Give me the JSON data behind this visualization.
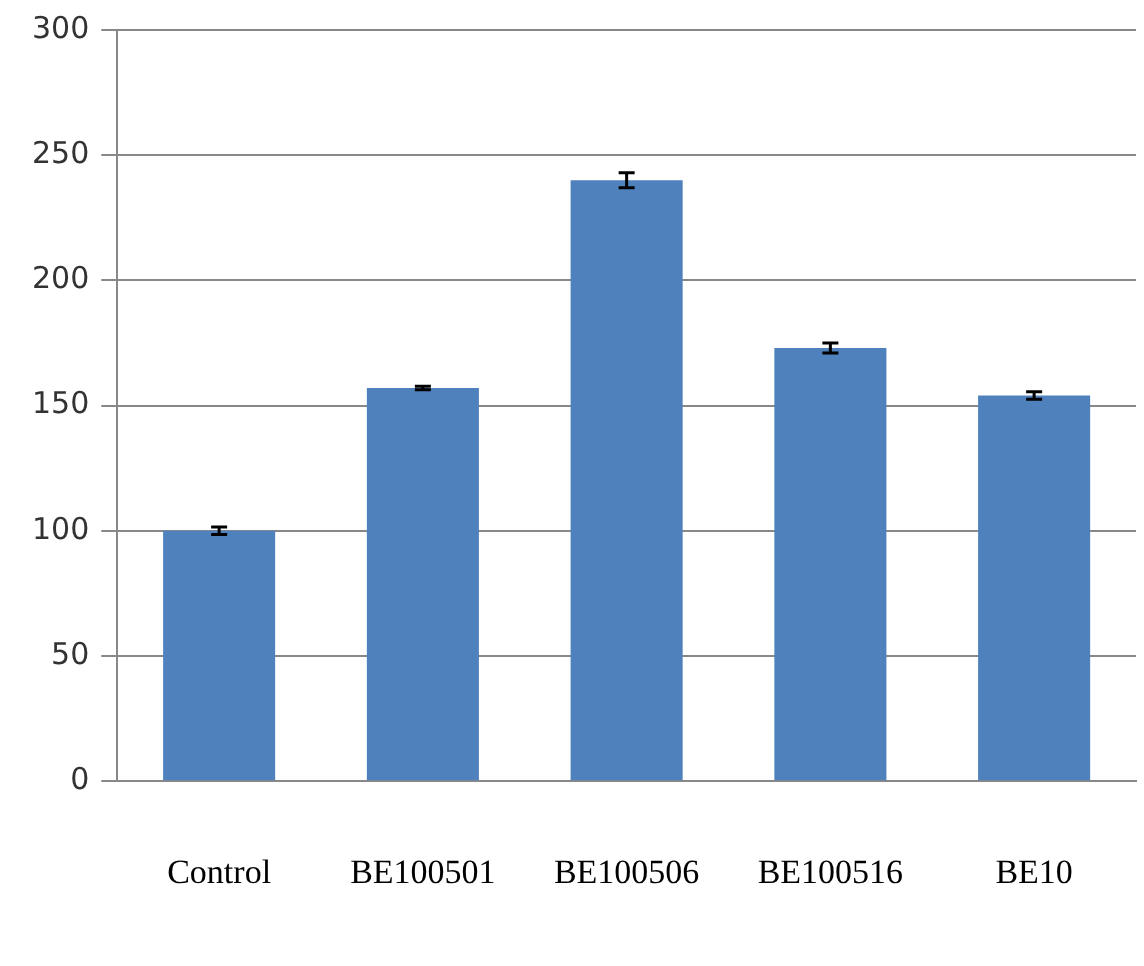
{
  "chart_data": {
    "type": "bar",
    "categories": [
      "Control",
      "BE100501",
      "BE100506",
      "BE100516",
      "BE10"
    ],
    "values": [
      100,
      157,
      240,
      173,
      154
    ],
    "errors": [
      1.5,
      0.7,
      3,
      2,
      1.5
    ],
    "color": "#4f81bd",
    "ylim": [
      0,
      300
    ],
    "yticks": [
      0,
      50,
      100,
      150,
      200,
      250,
      300
    ],
    "grid": "y",
    "legend": false
  }
}
